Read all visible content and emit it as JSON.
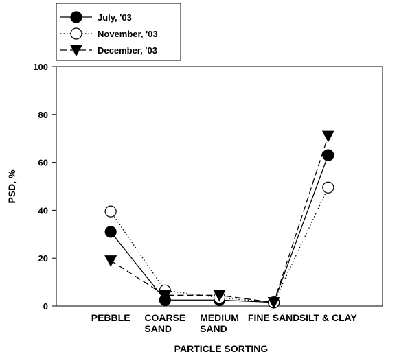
{
  "chart_data": {
    "type": "line",
    "categories": [
      "PEBBLE",
      "COARSE\nSAND",
      "MEDIUM\nSAND",
      "FINE SAND",
      "SILT & CLAY"
    ],
    "x_label": "PARTICLE SORTING",
    "y_label": "PSD, %",
    "ylim": [
      0,
      100
    ],
    "yticks": [
      0,
      20,
      40,
      60,
      80,
      100
    ],
    "legend": "top-left",
    "series": [
      {
        "name": "July, '03",
        "color": "#000000",
        "dash": "solid",
        "marker": "circle",
        "marker_fill": "#000000",
        "values": [
          31,
          2.5,
          2.5,
          1.5,
          63
        ]
      },
      {
        "name": "November, '03",
        "color": "#000000",
        "dash": "dotted",
        "marker": "circle",
        "marker_fill": "#ffffff",
        "values": [
          39.5,
          6.5,
          3.5,
          1.5,
          49.5
        ]
      },
      {
        "name": "December, '03",
        "color": "#000000",
        "dash": "dashed",
        "marker": "triangle-down",
        "marker_fill": "#000000",
        "values": [
          19,
          4.5,
          4.5,
          1.5,
          71
        ]
      }
    ]
  }
}
